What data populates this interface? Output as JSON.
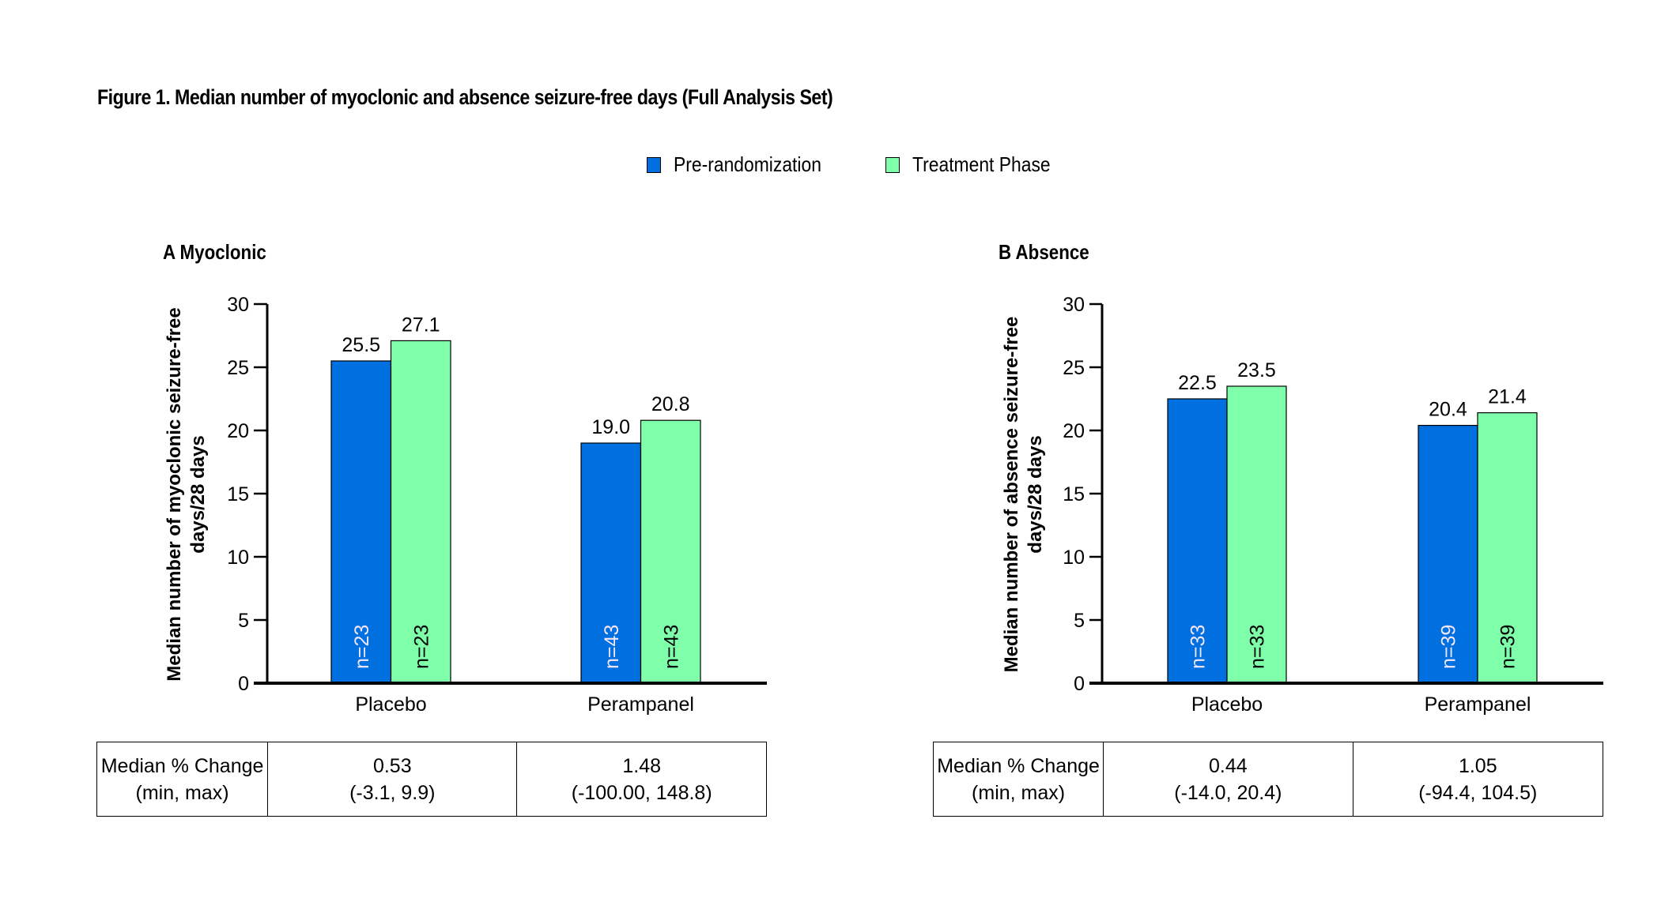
{
  "figure_title": "Figure 1. Median number of myoclonic and absence seizure-free days (Full Analysis Set)",
  "legend": [
    {
      "label": "Pre-randomization",
      "color": "#0070E0"
    },
    {
      "label": "Treatment Phase",
      "color": "#7FFFAA"
    }
  ],
  "chart_data": [
    {
      "type": "bar",
      "panel": "A",
      "title": "A  Myoclonic",
      "xlabel": "",
      "ylabel": "Median number of myoclonic seizure-free days/28 days",
      "ylabel_lines": [
        "Median number of myoclonic seizure-free",
        "days/28 days"
      ],
      "ylim": [
        0,
        30
      ],
      "yticks": [
        0,
        5,
        10,
        15,
        20,
        25,
        30
      ],
      "grid": false,
      "legend_position": "top-center",
      "categories": [
        "Placebo",
        "Perampanel"
      ],
      "series": [
        {
          "name": "Pre-randomization",
          "color": "#0070E0",
          "values": [
            25.5,
            19.0
          ],
          "labels": [
            "25.5",
            "19.0"
          ],
          "n": [
            "n=23",
            "n=43"
          ]
        },
        {
          "name": "Treatment Phase",
          "color": "#7FFFAA",
          "values": [
            27.1,
            20.8
          ],
          "labels": [
            "27.1",
            "20.8"
          ],
          "n": [
            "n=23",
            "n=43"
          ]
        }
      ],
      "table": {
        "row_header": [
          "Median % Change",
          "(min, max)"
        ],
        "cells": [
          {
            "median": "0.53",
            "range": "(-3.1, 9.9)"
          },
          {
            "median": "1.48",
            "range": "(-100.00, 148.8)"
          }
        ]
      }
    },
    {
      "type": "bar",
      "panel": "B",
      "title": "B  Absence",
      "xlabel": "",
      "ylabel": "Median number of absence seizure-free days/28 days",
      "ylabel_lines": [
        "Median number of absence seizure-free",
        "days/28 days"
      ],
      "ylim": [
        0,
        30
      ],
      "yticks": [
        0,
        5,
        10,
        15,
        20,
        25,
        30
      ],
      "grid": false,
      "legend_position": "top-center",
      "categories": [
        "Placebo",
        "Perampanel"
      ],
      "series": [
        {
          "name": "Pre-randomization",
          "color": "#0070E0",
          "values": [
            22.5,
            20.4
          ],
          "labels": [
            "22.5",
            "20.4"
          ],
          "n": [
            "n=33",
            "n=39"
          ]
        },
        {
          "name": "Treatment Phase",
          "color": "#7FFFAA",
          "values": [
            23.5,
            21.4
          ],
          "labels": [
            "23.5",
            "21.4"
          ],
          "n": [
            "n=33",
            "n=39"
          ]
        }
      ],
      "table": {
        "row_header": [
          "Median % Change",
          "(min, max)"
        ],
        "cells": [
          {
            "median": "0.44",
            "range": "(-14.0, 20.4)"
          },
          {
            "median": "1.05",
            "range": "(-94.4, 104.5)"
          }
        ]
      }
    }
  ]
}
